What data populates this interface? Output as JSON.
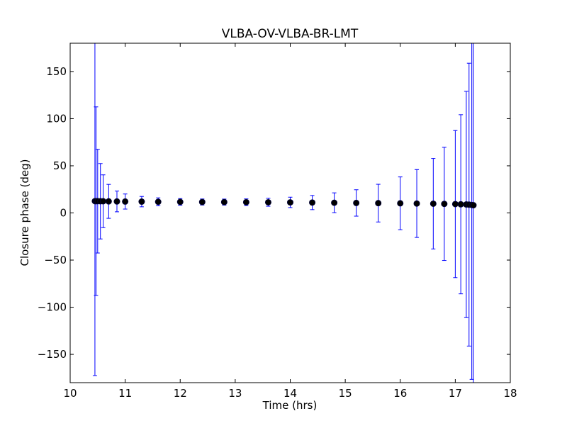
{
  "chart_data": {
    "type": "scatter",
    "title": "VLBA-OV-VLBA-BR-LMT",
    "xlabel": "Time (hrs)",
    "ylabel": "Closure phase (deg)",
    "xlim": [
      10,
      18
    ],
    "ylim": [
      -180,
      180
    ],
    "xticks": [
      10,
      11,
      12,
      13,
      14,
      15,
      16,
      17,
      18
    ],
    "yticks": [
      -150,
      -100,
      -50,
      0,
      50,
      100,
      150
    ],
    "xtick_labels": [
      "10",
      "11",
      "12",
      "13",
      "14",
      "15",
      "16",
      "17",
      "18"
    ],
    "ytick_labels": [
      "−150",
      "−100",
      "−50",
      "0",
      "50",
      "100",
      "150"
    ],
    "grid": false,
    "marker_color": "#000000",
    "errorbar_color": "#0000ff",
    "series": [
      {
        "x": [
          10.45,
          10.47,
          10.5,
          10.55,
          10.6,
          10.7,
          10.85,
          11.0,
          11.3,
          11.6,
          12.0,
          12.4,
          12.8,
          13.2,
          13.6,
          14.0,
          14.4,
          14.8,
          15.2,
          15.6,
          16.0,
          16.3,
          16.6,
          16.8,
          17.0,
          17.1,
          17.2,
          17.25,
          17.3,
          17.33
        ],
        "y": [
          12.5,
          12.5,
          12.5,
          12.4,
          12.4,
          12.3,
          12.2,
          12.1,
          12.0,
          11.8,
          11.7,
          11.6,
          11.5,
          11.4,
          11.3,
          11.2,
          11.0,
          10.8,
          10.6,
          10.4,
          10.2,
          10.0,
          9.8,
          9.6,
          9.4,
          9.2,
          9.0,
          8.8,
          8.5,
          8.2
        ],
        "yerr": [
          185,
          100,
          55,
          40,
          28,
          18,
          11,
          8,
          5.5,
          4.2,
          3.5,
          3.2,
          3.2,
          3.5,
          4.2,
          5.5,
          7.5,
          10.5,
          14,
          20,
          28,
          36,
          48,
          60,
          78,
          95,
          120,
          150,
          185,
          190
        ]
      }
    ]
  }
}
